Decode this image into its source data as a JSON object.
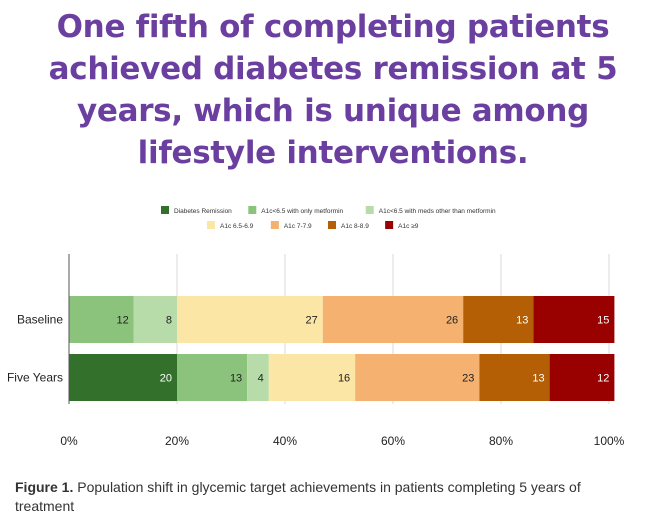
{
  "headline": {
    "lines": [
      "One fifth of completing patients",
      "achieved diabetes remission at 5",
      "years, which is unique among",
      "lifestyle interventions."
    ]
  },
  "chart_data": {
    "type": "bar",
    "orientation": "horizontal",
    "stacked": true,
    "categories": [
      "Baseline",
      "Five Years"
    ],
    "series": [
      {
        "name": "Diabetes Remission",
        "color": "#33702b",
        "values": [
          0,
          20
        ]
      },
      {
        "name": "A1c<6.5 with only metformin",
        "color": "#8cc37c",
        "values": [
          12,
          13
        ]
      },
      {
        "name": "A1c<6.5 with meds other than metformin",
        "color": "#b7dcaa",
        "values": [
          8,
          4
        ]
      },
      {
        "name": "A1c 6.5-6.9",
        "color": "#fbe6a6",
        "values": [
          27,
          16
        ]
      },
      {
        "name": "A1c 7-7.9",
        "color": "#f4b170",
        "values": [
          26,
          23
        ]
      },
      {
        "name": "A1c 8-8.9",
        "color": "#b45f06",
        "values": [
          13,
          13
        ]
      },
      {
        "name": "A1c ≥9",
        "color": "#990000",
        "values": [
          15,
          12
        ]
      }
    ],
    "xlim": [
      0,
      100
    ],
    "xticks": [
      "0%",
      "20%",
      "40%",
      "60%",
      "80%",
      "100%"
    ],
    "grid": true,
    "legend_position": "top"
  },
  "caption": {
    "label": "Figure 1.",
    "text": " Population shift in glycemic target achievements in patients completing 5 years of treatment"
  }
}
